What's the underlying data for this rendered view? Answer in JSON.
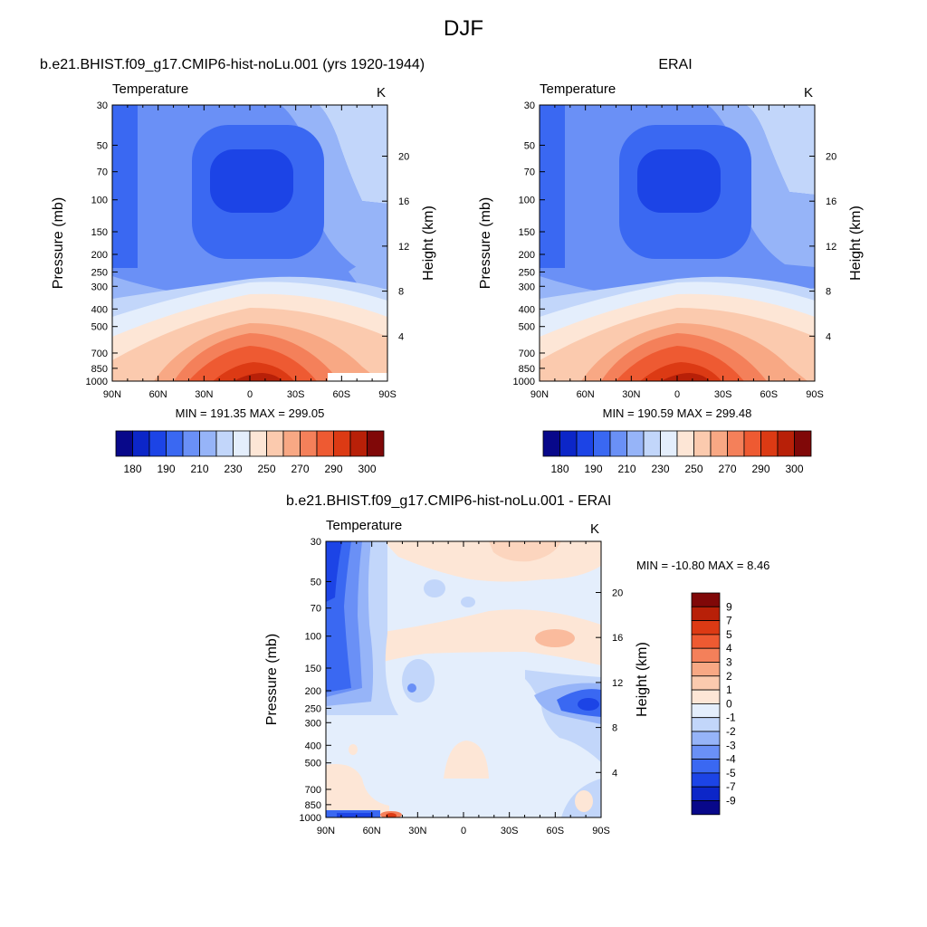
{
  "figure": {
    "title": "DJF"
  },
  "colors": {
    "temperature_scale": [
      "#08088a",
      "#0c26c8",
      "#1c44e6",
      "#3a68f2",
      "#6a90f6",
      "#96b4f8",
      "#c2d6fa",
      "#e4eefc",
      "#fde6d6",
      "#fbcaae",
      "#f8a884",
      "#f4805a",
      "#ee5a32",
      "#dc3a14",
      "#b82008",
      "#800808"
    ],
    "difference_scale": [
      "#08088a",
      "#0c26c8",
      "#1c44e6",
      "#3a68f2",
      "#6a90f6",
      "#96b4f8",
      "#c2d6fa",
      "#e4eefc",
      "#fde6d6",
      "#fbcaae",
      "#f8a884",
      "#f4805a",
      "#ee5a32",
      "#dc3a14",
      "#b82008",
      "#800808"
    ]
  },
  "chart_data": [
    {
      "type": "heatmap",
      "title": "b.e21.BHIST.f09_g17.CMIP6-hist-noLu.001 (yrs 1920-1944)",
      "left_label": "Temperature",
      "right_label": "K",
      "xlabel": "",
      "ylabel": "Pressure (mb)",
      "ylabel_right": "Height (km)",
      "x_ticks": [
        "90N",
        "60N",
        "30N",
        "0",
        "30S",
        "60S",
        "90S"
      ],
      "y_ticks": [
        30,
        50,
        70,
        100,
        150,
        200,
        250,
        300,
        400,
        500,
        700,
        850,
        1000
      ],
      "y_ticks_right": [
        20,
        16,
        12,
        8,
        4
      ],
      "ylim": [
        30,
        1000
      ],
      "y_scale": "log",
      "stats": "MIN = 191.35  MAX = 299.05",
      "colorbar_labels": [
        "180",
        "190",
        "210",
        "230",
        "250",
        "270",
        "290",
        "300"
      ],
      "approx_field_K": {
        "lat": [
          "90N",
          "60N",
          "30N",
          "0",
          "30S",
          "60S",
          "90S"
        ],
        "p_1000": [
          240,
          258,
          285,
          299,
          290,
          270,
          250
        ],
        "p_700": [
          238,
          255,
          275,
          283,
          276,
          260,
          248
        ],
        "p_400": [
          225,
          232,
          246,
          252,
          246,
          235,
          228
        ],
        "p_250": [
          210,
          214,
          220,
          224,
          220,
          218,
          222
        ],
        "p_100": [
          205,
          210,
          200,
          192,
          200,
          215,
          230
        ],
        "p_30": [
          195,
          208,
          210,
          210,
          212,
          222,
          234
        ]
      }
    },
    {
      "type": "heatmap",
      "title": "ERAI",
      "left_label": "Temperature",
      "right_label": "K",
      "xlabel": "",
      "ylabel": "Pressure (mb)",
      "ylabel_right": "Height (km)",
      "x_ticks": [
        "90N",
        "60N",
        "30N",
        "0",
        "30S",
        "60S",
        "90S"
      ],
      "y_ticks": [
        30,
        50,
        70,
        100,
        150,
        200,
        250,
        300,
        400,
        500,
        700,
        850,
        1000
      ],
      "y_ticks_right": [
        20,
        16,
        12,
        8,
        4
      ],
      "ylim": [
        30,
        1000
      ],
      "y_scale": "log",
      "stats": "MIN = 190.59  MAX = 299.48",
      "colorbar_labels": [
        "180",
        "190",
        "210",
        "230",
        "250",
        "270",
        "290",
        "300"
      ]
    },
    {
      "type": "heatmap",
      "title": "b.e21.BHIST.f09_g17.CMIP6-hist-noLu.001 - ERAI",
      "left_label": "Temperature",
      "right_label": "K",
      "xlabel": "",
      "ylabel": "Pressure (mb)",
      "ylabel_right": "Height (km)",
      "x_ticks": [
        "90N",
        "60N",
        "30N",
        "0",
        "30S",
        "60S",
        "90S"
      ],
      "y_ticks": [
        30,
        50,
        70,
        100,
        150,
        200,
        250,
        300,
        400,
        500,
        700,
        850,
        1000
      ],
      "y_ticks_right": [
        20,
        16,
        12,
        8,
        4
      ],
      "ylim": [
        30,
        1000
      ],
      "y_scale": "log",
      "stats": "MIN = -10.80  MAX =   8.46",
      "colorbar_labels": [
        "9",
        "7",
        "5",
        "4",
        "3",
        "2",
        "1",
        "0",
        "-1",
        "-2",
        "-3",
        "-4",
        "-5",
        "-7",
        "-9"
      ]
    }
  ]
}
